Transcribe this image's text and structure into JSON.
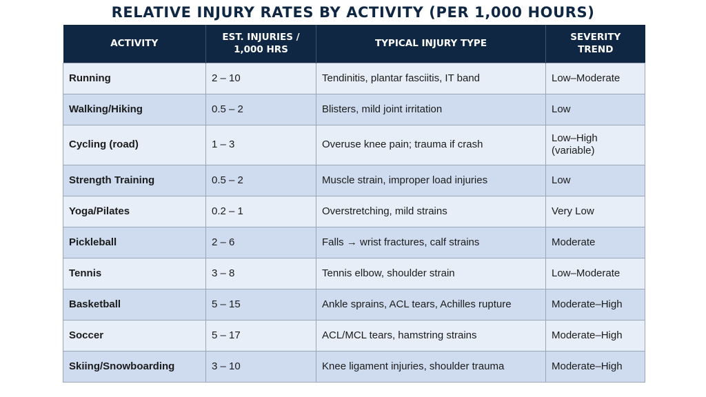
{
  "title": "RELATIVE INJURY RATES BY ACTIVITY (PER 1,000 HOURS)",
  "headers": {
    "activity": "ACTIVITY",
    "injuries": "EST. INJURIES /\n1,000 HRS",
    "type": "TYPICAL INJURY TYPE",
    "severity": "SEVERITY\nTREND"
  },
  "rows": [
    {
      "activity": "Running",
      "injuries": "2 – 10",
      "type": "Tendinitis, plantar fasciitis, IT band",
      "severity": "Low–Moderate"
    },
    {
      "activity": "Walking/Hiking",
      "injuries": "0.5 – 2",
      "type": "Blisters, mild joint irritation",
      "severity": "Low"
    },
    {
      "activity": "Cycling (road)",
      "injuries": "1 – 3",
      "type": "Overuse knee pain; trauma if crash",
      "severity": "Low–High\n(variable)"
    },
    {
      "activity": "Strength Training",
      "injuries": "0.5 – 2",
      "type": "Muscle strain, improper load injuries",
      "severity": "Low"
    },
    {
      "activity": "Yoga/Pilates",
      "injuries": "0.2 – 1",
      "type": "Overstretching, mild strains",
      "severity": "Very Low"
    },
    {
      "activity": "Pickleball",
      "injuries": "2 – 6",
      "type": "Falls → wrist fractures, calf strains",
      "severity": "Moderate"
    },
    {
      "activity": "Tennis",
      "injuries": "3 – 8",
      "type": "Tennis elbow, shoulder strain",
      "severity": "Low–Moderate"
    },
    {
      "activity": "Basketball",
      "injuries": "5 – 15",
      "type": "Ankle sprains, ACL tears, Achilles rupture",
      "severity": "Moderate–High"
    },
    {
      "activity": "Soccer",
      "injuries": "5 – 17",
      "type": "ACL/MCL tears, hamstring strains",
      "severity": "Moderate–High"
    },
    {
      "activity": "Skiing/Snowboarding",
      "injuries": "3 – 10",
      "type": "Knee ligament injuries, shoulder trauma",
      "severity": "Moderate–High"
    }
  ]
}
